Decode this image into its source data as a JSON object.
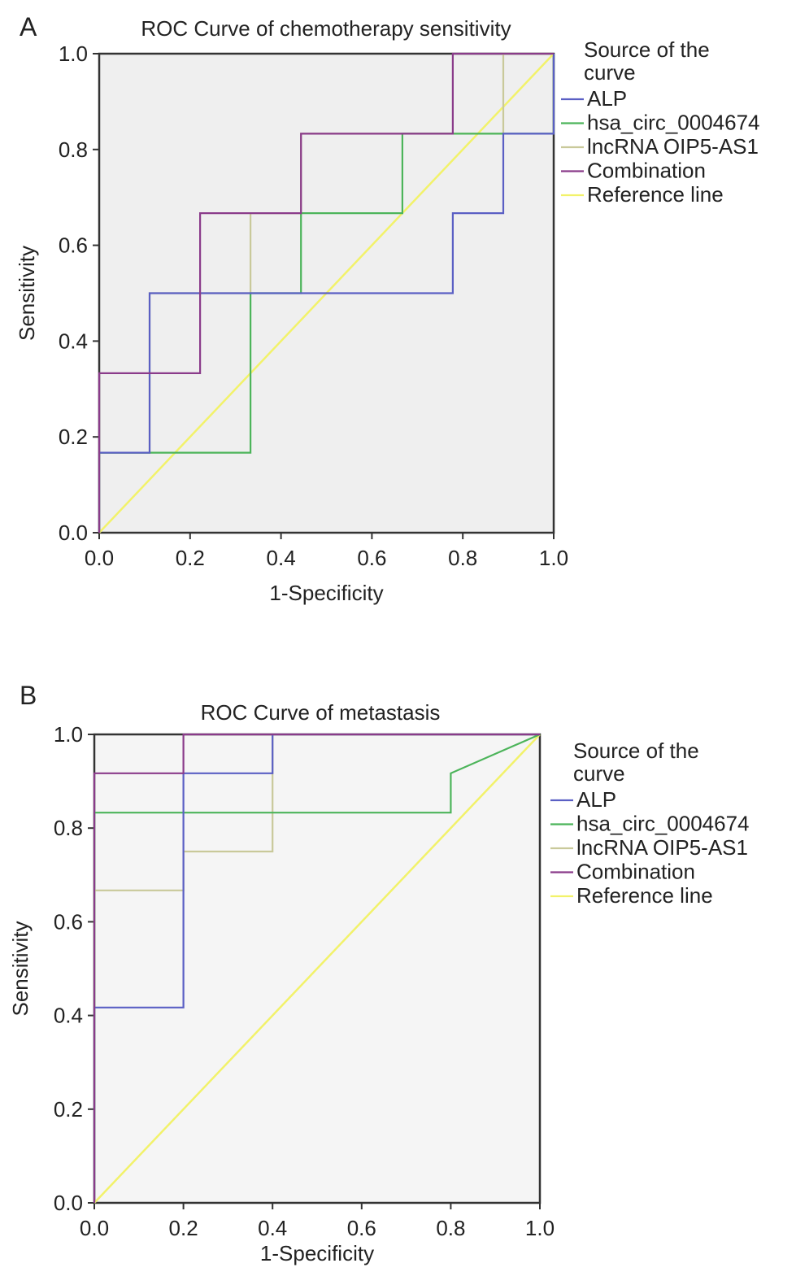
{
  "colors": {
    "ALP": "#5a5fc4",
    "hsa_circ_0004674": "#4cb45a",
    "lncRNA OIP5-AS1": "#c9c99a",
    "Combination": "#8a3b8a",
    "Reference line": "#f2f26a"
  },
  "chart_data": [
    {
      "panel": "A",
      "type": "line",
      "title": "ROC Curve of chemotherapy sensitivity",
      "xlabel": "1-Specificity",
      "ylabel": "Sensitivity",
      "xlim": [
        0,
        1
      ],
      "ylim": [
        0,
        1
      ],
      "xticks": [
        "0.0",
        "0.2",
        "0.4",
        "0.6",
        "0.8",
        "1.0"
      ],
      "yticks": [
        "0.0",
        "0.2",
        "0.4",
        "0.6",
        "0.8",
        "1.0"
      ],
      "legend_title": "Source of the curve",
      "legend_position": "right",
      "background": "#efefef",
      "series": [
        {
          "name": "ALP",
          "points": [
            [
              0,
              0
            ],
            [
              0,
              0.167
            ],
            [
              0.111,
              0.167
            ],
            [
              0.111,
              0.5
            ],
            [
              0.778,
              0.5
            ],
            [
              0.778,
              0.667
            ],
            [
              0.889,
              0.667
            ],
            [
              0.889,
              0.833
            ],
            [
              1,
              0.833
            ],
            [
              1,
              1
            ]
          ]
        },
        {
          "name": "hsa_circ_0004674",
          "points": [
            [
              0,
              0
            ],
            [
              0,
              0.167
            ],
            [
              0.333,
              0.167
            ],
            [
              0.333,
              0.5
            ],
            [
              0.444,
              0.5
            ],
            [
              0.444,
              0.667
            ],
            [
              0.667,
              0.667
            ],
            [
              0.667,
              0.833
            ],
            [
              1,
              0.833
            ],
            [
              1,
              1
            ]
          ]
        },
        {
          "name": "lncRNA OIP5-AS1",
          "points": [
            [
              0,
              0
            ],
            [
              0,
              0.167
            ],
            [
              0.111,
              0.167
            ],
            [
              0.111,
              0.5
            ],
            [
              0.333,
              0.5
            ],
            [
              0.333,
              0.667
            ],
            [
              0.444,
              0.667
            ],
            [
              0.444,
              0.833
            ],
            [
              0.889,
              0.833
            ],
            [
              0.889,
              1
            ],
            [
              1,
              1
            ]
          ]
        },
        {
          "name": "Combination",
          "points": [
            [
              0,
              0
            ],
            [
              0,
              0.333
            ],
            [
              0.222,
              0.333
            ],
            [
              0.222,
              0.667
            ],
            [
              0.444,
              0.667
            ],
            [
              0.444,
              0.833
            ],
            [
              0.778,
              0.833
            ],
            [
              0.778,
              1
            ],
            [
              1,
              1
            ]
          ]
        },
        {
          "name": "Reference line",
          "points": [
            [
              0,
              0
            ],
            [
              1,
              1
            ]
          ]
        }
      ]
    },
    {
      "panel": "B",
      "type": "line",
      "title": "ROC Curve of metastasis",
      "xlabel": "1-Specificity",
      "ylabel": "Sensitivity",
      "xlim": [
        0,
        1
      ],
      "ylim": [
        0,
        1
      ],
      "xticks": [
        "0.0",
        "0.2",
        "0.4",
        "0.6",
        "0.8",
        "1.0"
      ],
      "yticks": [
        "0.0",
        "0.2",
        "0.4",
        "0.6",
        "0.8",
        "1.0"
      ],
      "legend_title": "Source of the curve",
      "legend_position": "right",
      "background": "#f5f5f5",
      "series": [
        {
          "name": "ALP",
          "points": [
            [
              0,
              0
            ],
            [
              0,
              0.417
            ],
            [
              0.2,
              0.417
            ],
            [
              0.2,
              0.917
            ],
            [
              0.4,
              0.917
            ],
            [
              0.4,
              1
            ],
            [
              1,
              1
            ]
          ]
        },
        {
          "name": "hsa_circ_0004674",
          "points": [
            [
              0,
              0
            ],
            [
              0,
              0.833
            ],
            [
              0.8,
              0.833
            ],
            [
              0.8,
              0.917
            ],
            [
              1,
              1
            ]
          ]
        },
        {
          "name": "lncRNA OIP5-AS1",
          "points": [
            [
              0,
              0
            ],
            [
              0,
              0.667
            ],
            [
              0.2,
              0.667
            ],
            [
              0.2,
              0.75
            ],
            [
              0.4,
              0.75
            ],
            [
              0.4,
              1
            ],
            [
              1,
              1
            ]
          ]
        },
        {
          "name": "Combination",
          "points": [
            [
              0,
              0
            ],
            [
              0,
              0.917
            ],
            [
              0.2,
              0.917
            ],
            [
              0.2,
              1
            ],
            [
              1,
              1
            ]
          ]
        },
        {
          "name": "Reference line",
          "points": [
            [
              0,
              0
            ],
            [
              1,
              1
            ]
          ]
        }
      ]
    }
  ]
}
